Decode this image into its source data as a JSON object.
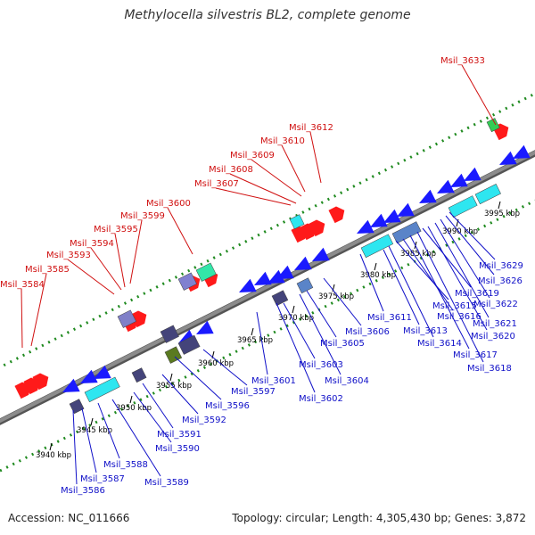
{
  "title": "Methylocella silvestris BL2, complete genome",
  "footer": {
    "accession": "Accession: NC_011666",
    "summary": "Topology: circular; Length: 4,305,430 bp; Genes: 3,872"
  },
  "colors": {
    "backbone": "#8c8c8c",
    "track_dots": "#1f8a1f",
    "top_labels": "#d01010",
    "bottom_labels": "#1010c8",
    "forward_gene": "#ff1a1a",
    "reverse_gene": "#1a1aff"
  },
  "scale_labels": [
    "3940 kbp",
    "3945 kbp",
    "3950 kbp",
    "3955 kbp",
    "3960 kbp",
    "3965 kbp",
    "3970 kbp",
    "3975 kbp",
    "3980 kbp",
    "3985 kbp",
    "3990 kbp",
    "3995 kbp"
  ],
  "top_gene_labels": [
    "Msil_3584",
    "Msil_3585",
    "Msil_3593",
    "Msil_3594",
    "Msil_3595",
    "Msil_3599",
    "Msil_3600",
    "Msil_3607",
    "Msil_3608",
    "Msil_3609",
    "Msil_3610",
    "Msil_3612",
    "Msil_3633"
  ],
  "bottom_gene_labels": [
    "Msil_3586",
    "Msil_3587",
    "Msil_3588",
    "Msil_3589",
    "Msil_3590",
    "Msil_3591",
    "Msil_3592",
    "Msil_3596",
    "Msil_3597",
    "Msil_3601",
    "Msil_3602",
    "Msil_3603",
    "Msil_3604",
    "Msil_3605",
    "Msil_3606",
    "Msil_3611",
    "Msil_3613",
    "Msil_3614",
    "Msil_3615",
    "Msil_3616",
    "Msil_3617",
    "Msil_3618",
    "Msil_3619",
    "Msil_3620",
    "Msil_3621",
    "Msil_3622",
    "Msil_3626",
    "Msil_3629"
  ]
}
